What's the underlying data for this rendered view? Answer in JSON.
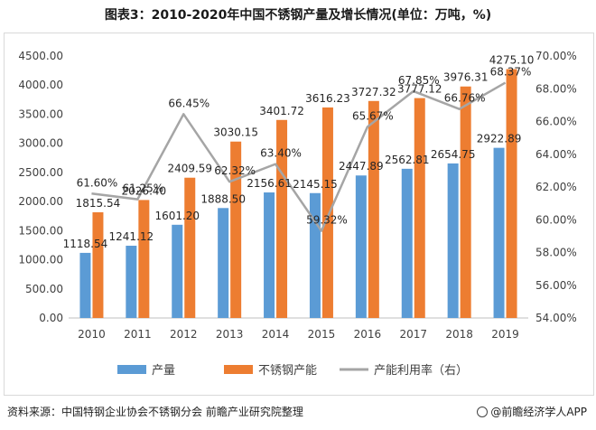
{
  "title": "图表3：2010-2020年中国不锈钢产量及增长情况(单位：万吨，%)",
  "source": "资料来源：中国特钢企业协会不锈钢分会 前瞻产业研究院整理",
  "brand": "@前瞻经济学人APP",
  "colors": {
    "production": "#5b9bd5",
    "consumption": "#ed7d31",
    "rate": "#a5a5a5"
  },
  "chart_data": {
    "type": "bar",
    "categories": [
      "2010",
      "2011",
      "2012",
      "2013",
      "2014",
      "2015",
      "2016",
      "2017",
      "2018",
      "2019"
    ],
    "series": [
      {
        "name": "产量",
        "type": "bar",
        "axis": "left",
        "values": [
          1118.54,
          1241.12,
          1601.2,
          1888.5,
          2156.61,
          2145.15,
          2447.89,
          2562.81,
          2654.75,
          2922.89
        ],
        "labels": [
          "1118.54",
          "1241.12",
          "1601.20",
          "1888.50",
          "2156.61",
          "2145.15",
          "2447.89",
          "2562.81",
          "2654.75",
          "2922.89"
        ]
      },
      {
        "name": "不锈钢产能",
        "type": "bar",
        "axis": "left",
        "values": [
          1815.54,
          2026.4,
          2409.59,
          3030.15,
          3401.72,
          3616.23,
          3727.32,
          3777.12,
          3976.31,
          4275.1
        ],
        "labels": [
          "1815.54",
          "2026.40",
          "2409.59",
          "3030.15",
          "3401.72",
          "3616.23",
          "3727.32",
          "3777.12",
          "3976.31",
          "4275.10"
        ]
      },
      {
        "name": "产能利用率（右）",
        "type": "line",
        "axis": "right",
        "values": [
          61.6,
          61.25,
          66.45,
          62.32,
          63.4,
          59.32,
          65.67,
          67.85,
          66.76,
          68.37
        ],
        "labels": [
          "61.60%",
          "61.25%",
          "66.45%",
          "62.32%",
          "63.40%",
          "59.32%",
          "65.67%",
          "67.85%",
          "66.76%",
          "68.37%"
        ]
      }
    ],
    "ylim": [
      0,
      4500
    ],
    "yticks": [
      "0.00",
      "500.00",
      "1000.00",
      "1500.00",
      "2000.00",
      "2500.00",
      "3000.00",
      "3500.00",
      "4000.00",
      "4500.00"
    ],
    "y2lim": [
      54,
      70
    ],
    "y2ticks": [
      "54.00%",
      "56.00%",
      "58.00%",
      "60.00%",
      "62.00%",
      "64.00%",
      "66.00%",
      "68.00%",
      "70.00%"
    ],
    "grid": false,
    "legend": "bottom"
  }
}
